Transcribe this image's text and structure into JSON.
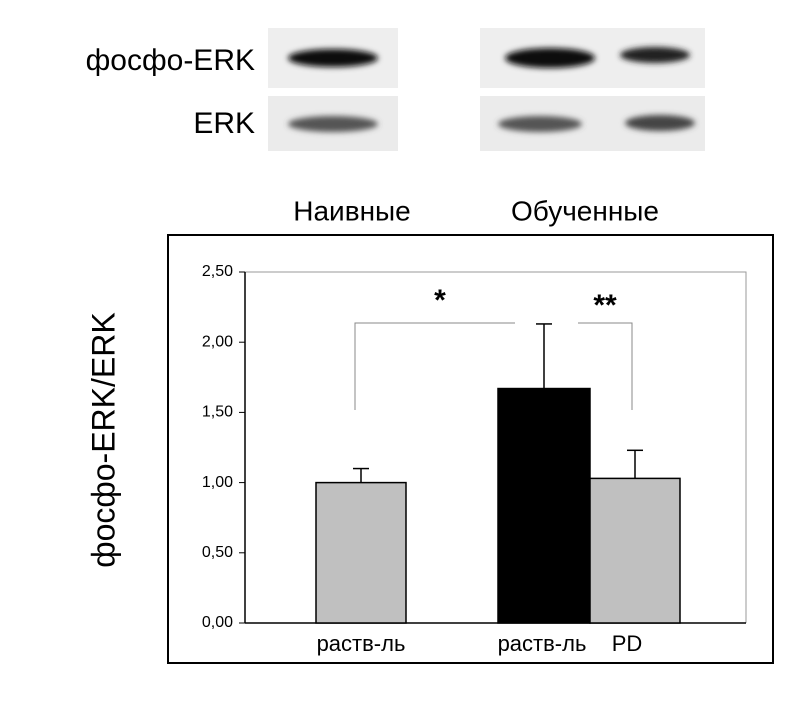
{
  "chart_data": {
    "type": "bar",
    "blot_labels": [
      "фосфо-ERK",
      "ERK"
    ],
    "group_labels": [
      "Наивные",
      "Обученные"
    ],
    "y_label": "фосфо-ERK/ERK",
    "categories": [
      "раств-ль",
      "раств-ль",
      "PD"
    ],
    "values": [
      1.0,
      1.67,
      1.03
    ],
    "errors": [
      0.1,
      0.46,
      0.2
    ],
    "colors": [
      "#c0c0c0",
      "#000000",
      "#c0c0c0"
    ],
    "annotations": [
      "*",
      "**"
    ],
    "ylim": [
      0,
      2.5
    ],
    "yticks": [
      {
        "value": 0,
        "label": "0,00"
      },
      {
        "value": 0.5,
        "label": "0,50"
      },
      {
        "value": 1,
        "label": "1,00"
      },
      {
        "value": 1.5,
        "label": "1,50"
      },
      {
        "value": 2,
        "label": "2,00"
      },
      {
        "value": 2.5,
        "label": "2,50"
      }
    ]
  }
}
